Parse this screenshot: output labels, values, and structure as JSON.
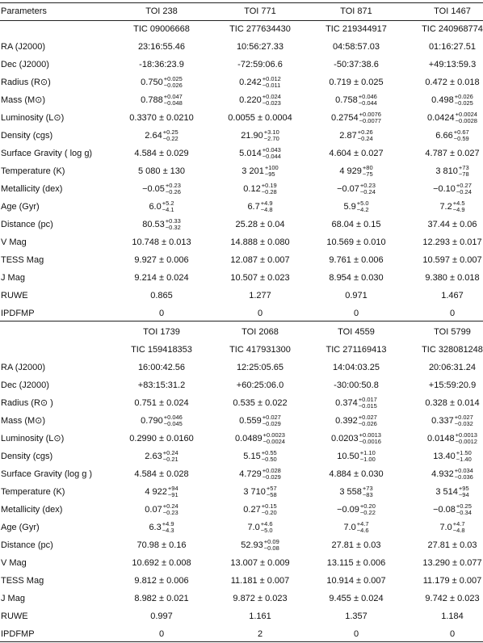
{
  "table1": {
    "header": {
      "label": "Parameters",
      "cols": [
        "TOI 238",
        "TOI 771",
        "TOI 871",
        "TOI 1467"
      ]
    },
    "tic": [
      "TIC 09006668",
      "TIC 277634430",
      "TIC 219344917",
      "TIC 240968774"
    ],
    "rows": [
      {
        "label": "RA (J2000)",
        "cells": [
          {
            "v": "23:16:55.46"
          },
          {
            "v": "10:56:27.33"
          },
          {
            "v": "04:58:57.03"
          },
          {
            "v": "01:16:27.51"
          }
        ]
      },
      {
        "label": "Dec (J2000)",
        "cells": [
          {
            "v": "-18:36:23.9"
          },
          {
            "v": "-72:59:06.6"
          },
          {
            "v": "-50:37:38.6"
          },
          {
            "v": "+49:13:59.3"
          }
        ]
      },
      {
        "label": "Radius (R⊙)",
        "cells": [
          {
            "v": "0.750",
            "up": "+0.025",
            "dn": "−0.026"
          },
          {
            "v": "0.242",
            "up": "+0.012",
            "dn": "−0.011"
          },
          {
            "v": "0.719 ± 0.025"
          },
          {
            "v": "0.472 ± 0.018"
          }
        ]
      },
      {
        "label": "Mass (M⊙)",
        "cells": [
          {
            "v": "0.788",
            "up": "+0.047",
            "dn": "−0.048"
          },
          {
            "v": "0.220",
            "up": "+0.024",
            "dn": "−0.023"
          },
          {
            "v": "0.758",
            "up": "+0.046",
            "dn": "−0.044"
          },
          {
            "v": "0.498",
            "up": "+0.026",
            "dn": "−0.025"
          }
        ]
      },
      {
        "label": "Luminosity (L⊙)",
        "cells": [
          {
            "v": "0.3370 ± 0.0210"
          },
          {
            "v": "0.0055 ± 0.0004"
          },
          {
            "v": "0.2754",
            "up": "+0.0076",
            "dn": "−0.0077"
          },
          {
            "v": "0.0424",
            "up": "+0.0024",
            "dn": "−0.0028"
          }
        ]
      },
      {
        "label": "Density (cgs)",
        "cells": [
          {
            "v": "2.64",
            "up": "+0.25",
            "dn": "−0.22"
          },
          {
            "v": "21.90",
            "up": "+3.10",
            "dn": "−2.70"
          },
          {
            "v": "2.87",
            "up": "+0.26",
            "dn": "−0.24"
          },
          {
            "v": "6.66",
            "up": "+0.67",
            "dn": "−0.59"
          }
        ]
      },
      {
        "label": "Surface Gravity ( log g)",
        "cells": [
          {
            "v": "4.584 ± 0.029"
          },
          {
            "v": "5.014",
            "up": "+0.043",
            "dn": "−0.044"
          },
          {
            "v": "4.604 ± 0.027"
          },
          {
            "v": "4.787 ± 0.027"
          }
        ]
      },
      {
        "label": "Temperature (K)",
        "cells": [
          {
            "v": "5 080 ± 130"
          },
          {
            "v": "3 201",
            "up": "+100",
            "dn": "−95"
          },
          {
            "v": "4 929",
            "up": "+80",
            "dn": "−75"
          },
          {
            "v": "3 810",
            "up": "+73",
            "dn": "−78"
          }
        ]
      },
      {
        "label": "Metallicity (dex)",
        "cells": [
          {
            "v": "−0.05",
            "up": "+0.23",
            "dn": "−0.26"
          },
          {
            "v": "0.12",
            "up": "+0.19",
            "dn": "−0.28"
          },
          {
            "v": "−0.07",
            "up": "+0.23",
            "dn": "−0.24"
          },
          {
            "v": "−0.10",
            "up": "+0.27",
            "dn": "−0.24"
          }
        ]
      },
      {
        "label": "Age (Gyr)",
        "cells": [
          {
            "v": "6.0",
            "up": "+5.2",
            "dn": "−4.1"
          },
          {
            "v": "6.7",
            "up": "+4.9",
            "dn": "−4.8"
          },
          {
            "v": "5.9",
            "up": "+5.0",
            "dn": "−4.2"
          },
          {
            "v": "7.2",
            "up": "+4.5",
            "dn": "−4.9"
          }
        ]
      },
      {
        "label": "Distance (pc)",
        "cells": [
          {
            "v": "80.53",
            "up": "+0.33",
            "dn": "−0.32"
          },
          {
            "v": "25.28 ± 0.04"
          },
          {
            "v": "68.04 ± 0.15"
          },
          {
            "v": "37.44 ± 0.06"
          }
        ]
      },
      {
        "label": "V Mag",
        "cells": [
          {
            "v": "10.748 ± 0.013"
          },
          {
            "v": "14.888 ± 0.080"
          },
          {
            "v": "10.569 ± 0.010"
          },
          {
            "v": "12.293 ± 0.017"
          }
        ]
      },
      {
        "label": "TESS Mag",
        "cells": [
          {
            "v": "9.927 ± 0.006"
          },
          {
            "v": "12.087 ± 0.007"
          },
          {
            "v": "9.761 ± 0.006"
          },
          {
            "v": "10.597 ± 0.007"
          }
        ]
      },
      {
        "label": "J Mag",
        "cells": [
          {
            "v": "9.214 ± 0.024"
          },
          {
            "v": "10.507 ± 0.023"
          },
          {
            "v": "8.954 ± 0.030"
          },
          {
            "v": "9.380 ± 0.018"
          }
        ]
      },
      {
        "label": "RUWE",
        "cells": [
          {
            "v": "0.865"
          },
          {
            "v": "1.277"
          },
          {
            "v": "0.971"
          },
          {
            "v": "1.467"
          }
        ]
      },
      {
        "label": "IPDFMP",
        "cells": [
          {
            "v": "0"
          },
          {
            "v": "0"
          },
          {
            "v": "0"
          },
          {
            "v": "0"
          }
        ]
      }
    ]
  },
  "table2": {
    "header": {
      "label": "",
      "cols": [
        "TOI 1739",
        "TOI 2068",
        "TOI 4559",
        "TOI 5799"
      ]
    },
    "tic": [
      "TIC 159418353",
      "TIC 417931300",
      "TIC 271169413",
      "TIC 328081248"
    ],
    "rows": [
      {
        "label": "RA (J2000)",
        "cells": [
          {
            "v": "16:00:42.56"
          },
          {
            "v": "12:25:05.65"
          },
          {
            "v": "14:04:03.25"
          },
          {
            "v": "20:06:31.24"
          }
        ]
      },
      {
        "label": "Dec (J2000)",
        "cells": [
          {
            "v": "+83:15:31.2"
          },
          {
            "v": "+60:25:06.0"
          },
          {
            "v": "-30:00:50.8"
          },
          {
            "v": "+15:59:20.9"
          }
        ]
      },
      {
        "label": "Radius (R⊙ )",
        "cells": [
          {
            "v": "0.751 ± 0.024"
          },
          {
            "v": "0.535 ± 0.022"
          },
          {
            "v": "0.374",
            "up": "+0.017",
            "dn": "−0.015"
          },
          {
            "v": "0.328 ± 0.014"
          }
        ]
      },
      {
        "label": "Mass (M⊙)",
        "cells": [
          {
            "v": "0.790",
            "up": "+0.046",
            "dn": "−0.045"
          },
          {
            "v": "0.559",
            "up": "+0.027",
            "dn": "−0.029"
          },
          {
            "v": "0.392",
            "up": "+0.027",
            "dn": "−0.026"
          },
          {
            "v": "0.337",
            "up": "+0.027",
            "dn": "−0.032"
          }
        ]
      },
      {
        "label": "Luminosity (L⊙)",
        "cells": [
          {
            "v": "0.2990 ± 0.0160"
          },
          {
            "v": "0.0489",
            "up": "+0.0023",
            "dn": "−0.0024"
          },
          {
            "v": "0.0203",
            "up": "+0.0013",
            "dn": "−0.0016"
          },
          {
            "v": "0.0148",
            "up": "+0.0013",
            "dn": "−0.0012"
          }
        ]
      },
      {
        "label": "Density (cgs)",
        "cells": [
          {
            "v": "2.63",
            "up": "+0.24",
            "dn": "−0.21"
          },
          {
            "v": "5.15",
            "up": "+0.55",
            "dn": "−0.50"
          },
          {
            "v": "10.50",
            "up": "+1.10",
            "dn": "−1.00"
          },
          {
            "v": "13.40",
            "up": "+1.50",
            "dn": "−1.40"
          }
        ]
      },
      {
        "label": "Surface Gravity (log g )",
        "cells": [
          {
            "v": "4.584 ± 0.028"
          },
          {
            "v": "4.729",
            "up": "+0.028",
            "dn": "−0.029"
          },
          {
            "v": "4.884 ± 0.030"
          },
          {
            "v": "4.932",
            "up": "+0.034",
            "dn": "−0.036"
          }
        ]
      },
      {
        "label": "Temperature (K)",
        "cells": [
          {
            "v": "4 922",
            "up": "+94",
            "dn": "−91"
          },
          {
            "v": "3 710",
            "up": "+57",
            "dn": "−58"
          },
          {
            "v": "3 558",
            "up": "+73",
            "dn": "−83"
          },
          {
            "v": "3 514",
            "up": "+95",
            "dn": "−94"
          }
        ]
      },
      {
        "label": "Metallicity (dex)",
        "cells": [
          {
            "v": "0.07",
            "up": "+0.24",
            "dn": "−0.23"
          },
          {
            "v": "0.27",
            "up": "+0.15",
            "dn": "−0.20"
          },
          {
            "v": "−0.09",
            "up": "+0.20",
            "dn": "−0.22"
          },
          {
            "v": "−0.08",
            "up": "+0.25",
            "dn": "−0.34"
          }
        ]
      },
      {
        "label": "Age (Gyr)",
        "cells": [
          {
            "v": "6.3",
            "up": "+4.9",
            "dn": "−4.3"
          },
          {
            "v": "7.0",
            "up": "+4.6",
            "dn": "−5.0"
          },
          {
            "v": "7.0",
            "up": "+4.7",
            "dn": "−4.6"
          },
          {
            "v": "7.0",
            "up": "+4.7",
            "dn": "−4.8"
          }
        ]
      },
      {
        "label": "Distance (pc)",
        "cells": [
          {
            "v": "70.98 ± 0.16"
          },
          {
            "v": "52.93",
            "up": "+0.09",
            "dn": "−0.08"
          },
          {
            "v": "27.81 ± 0.03"
          },
          {
            "v": "27.81 ± 0.03"
          }
        ]
      },
      {
        "label": "V Mag",
        "cells": [
          {
            "v": "10.692 ± 0.008"
          },
          {
            "v": "13.007 ± 0.009"
          },
          {
            "v": "13.115 ± 0.006"
          },
          {
            "v": "13.290 ± 0.077"
          }
        ]
      },
      {
        "label": "TESS Mag",
        "cells": [
          {
            "v": "9.812 ± 0.006"
          },
          {
            "v": "11.181 ± 0.007"
          },
          {
            "v": "10.914 ± 0.007"
          },
          {
            "v": "11.179 ± 0.007"
          }
        ]
      },
      {
        "label": "J Mag",
        "cells": [
          {
            "v": "8.982 ± 0.021"
          },
          {
            "v": "9.872 ± 0.023"
          },
          {
            "v": "9.455 ± 0.024"
          },
          {
            "v": "9.742 ± 0.023"
          }
        ]
      },
      {
        "label": "RUWE",
        "cells": [
          {
            "v": "0.997"
          },
          {
            "v": "1.161"
          },
          {
            "v": "1.357"
          },
          {
            "v": "1.184"
          }
        ]
      },
      {
        "label": "IPDFMP",
        "cells": [
          {
            "v": "0"
          },
          {
            "v": "2"
          },
          {
            "v": "0"
          },
          {
            "v": "0"
          }
        ]
      }
    ]
  }
}
